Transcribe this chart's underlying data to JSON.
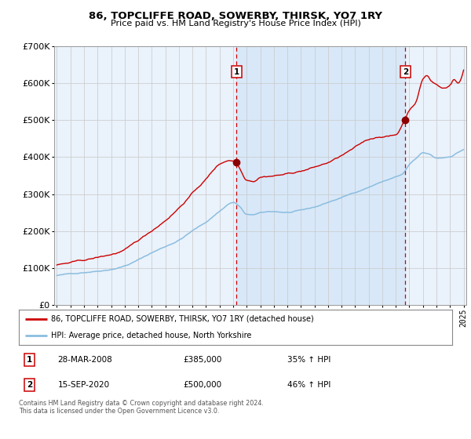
{
  "title": "86, TOPCLIFFE ROAD, SOWERBY, THIRSK, YO7 1RY",
  "subtitle": "Price paid vs. HM Land Registry's House Price Index (HPI)",
  "legend_line1": "86, TOPCLIFFE ROAD, SOWERBY, THIRSK, YO7 1RY (detached house)",
  "legend_line2": "HPI: Average price, detached house, North Yorkshire",
  "transaction1_date": "28-MAR-2008",
  "transaction1_price": "£385,000",
  "transaction1_hpi": "35% ↑ HPI",
  "transaction2_date": "15-SEP-2020",
  "transaction2_price": "£500,000",
  "transaction2_hpi": "46% ↑ HPI",
  "footer": "Contains HM Land Registry data © Crown copyright and database right 2024.\nThis data is licensed under the Open Government Licence v3.0.",
  "hpi_color": "#8bbde0",
  "price_color": "#cc0000",
  "marker_color": "#8b0000",
  "vline_color": "#cc0000",
  "shade_color": "#d8e8f8",
  "grid_color": "#c8c8c8",
  "plot_bg": "#eaf2fb",
  "ylim_max": 700000,
  "year_start": 1995,
  "year_end": 2025,
  "transaction1_year": 2008.25,
  "transaction2_year": 2020.7,
  "transaction1_price_val": 385000,
  "transaction2_price_val": 500000
}
